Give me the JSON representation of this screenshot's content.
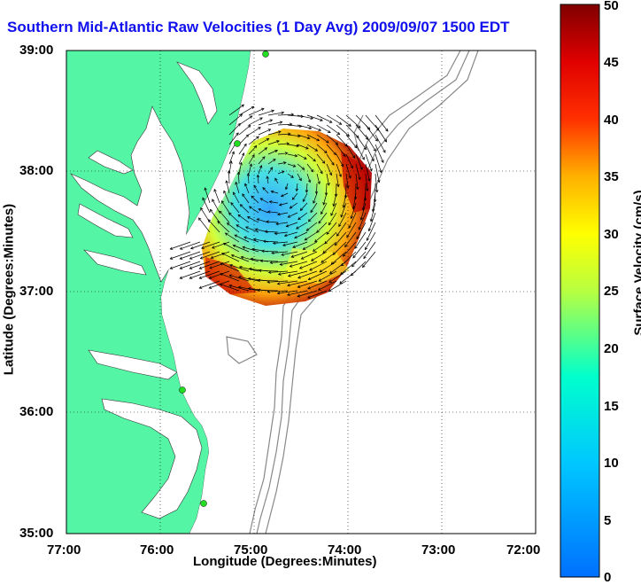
{
  "title": "Southern Mid-Atlantic Raw Velocities (1 Day Avg) 2009/09/07 1500 EDT",
  "xlabel": "Longitude (Degrees:Minutes)",
  "ylabel": "Latitude (Degrees:Minutes)",
  "colorbar_label": "Surface Velocity (cm/s)",
  "x_ticks": [
    "77:00",
    "76:00",
    "75:00",
    "74:00",
    "73:00",
    "72:00"
  ],
  "y_ticks": [
    "39:00",
    "38:00",
    "37:00",
    "36:00",
    "35:00"
  ],
  "colorbar_ticks": [
    "0",
    "5",
    "10",
    "15",
    "20",
    "25",
    "30",
    "35",
    "40",
    "45",
    "50"
  ],
  "colors": {
    "land": "#55f5a6",
    "title": "#1010ee",
    "bathymetry": "#888888"
  },
  "chart_data": {
    "type": "other",
    "xlim": [
      "77:00",
      "72:00"
    ],
    "ylim": [
      "35:00",
      "39:00"
    ],
    "color_scale": [
      0,
      50
    ],
    "grid": true,
    "legend": "colorbar right"
  }
}
